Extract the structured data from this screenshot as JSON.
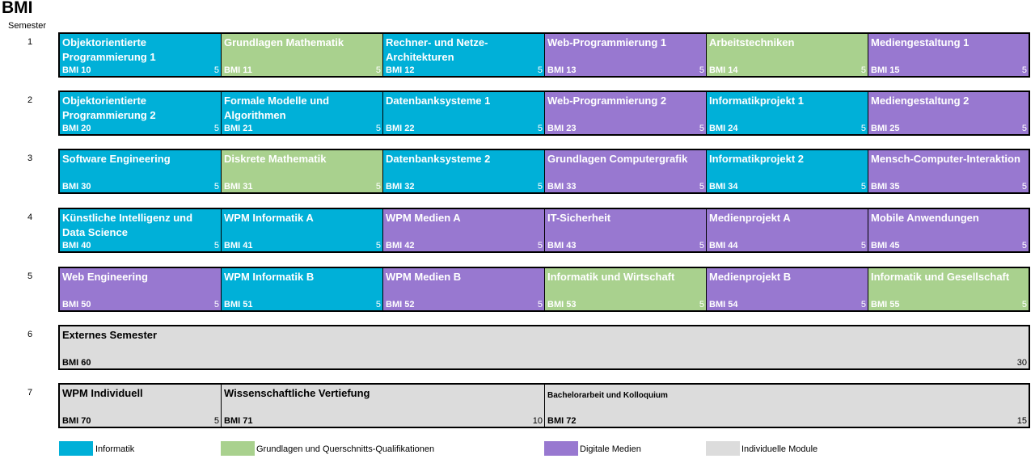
{
  "title": "BMI",
  "semester_header": "Semester",
  "colors": {
    "informatik": "#00b0d8",
    "grundlagen": "#a9d18e",
    "medien": "#9878d0",
    "individuell": "#dcdcdc"
  },
  "semesters": [
    {
      "number": "1",
      "modules": [
        {
          "name": "Objektorientierte Programmierung 1",
          "code": "BMI 10",
          "ects": "5",
          "category": "inf"
        },
        {
          "name": "Grundlagen Mathematik",
          "code": "BMI 11",
          "ects": "5",
          "category": "gq"
        },
        {
          "name": "Rechner- und Netze-Architekturen",
          "code": "BMI 12",
          "ects": "5",
          "category": "inf"
        },
        {
          "name": "Web-Programmierung 1",
          "code": "BMI 13",
          "ects": "5",
          "category": "dm"
        },
        {
          "name": "Arbeitstechniken",
          "code": "BMI 14",
          "ects": "5",
          "category": "gq"
        },
        {
          "name": "Mediengestaltung 1",
          "code": "BMI 15",
          "ects": "5",
          "category": "dm"
        }
      ]
    },
    {
      "number": "2",
      "modules": [
        {
          "name": "Objektorientierte Programmierung 2",
          "code": "BMI 20",
          "ects": "5",
          "category": "inf"
        },
        {
          "name": "Formale Modelle und Algorithmen",
          "code": "BMI 21",
          "ects": "5",
          "category": "inf"
        },
        {
          "name": "Datenbanksysteme 1",
          "code": "BMI 22",
          "ects": "5",
          "category": "inf"
        },
        {
          "name": "Web-Programmierung 2",
          "code": "BMI 23",
          "ects": "5",
          "category": "dm"
        },
        {
          "name": "Informatikprojekt 1",
          "code": "BMI 24",
          "ects": "5",
          "category": "inf"
        },
        {
          "name": "Mediengestaltung 2",
          "code": "BMI 25",
          "ects": "5",
          "category": "dm"
        }
      ]
    },
    {
      "number": "3",
      "modules": [
        {
          "name": "Software Engineering",
          "code": "BMI 30",
          "ects": "5",
          "category": "inf"
        },
        {
          "name": "Diskrete Mathematik",
          "code": "BMI 31",
          "ects": "5",
          "category": "gq"
        },
        {
          "name": "Datenbanksysteme 2",
          "code": "BMI 32",
          "ects": "5",
          "category": "inf"
        },
        {
          "name": "Grundlagen Computergrafik",
          "code": "BMI 33",
          "ects": "5",
          "category": "dm"
        },
        {
          "name": "Informatikprojekt 2",
          "code": "BMI 34",
          "ects": "5",
          "category": "inf"
        },
        {
          "name": "Mensch-Computer-Interaktion",
          "code": "BMI 35",
          "ects": "5",
          "category": "dm"
        }
      ]
    },
    {
      "number": "4",
      "modules": [
        {
          "name": "Künstliche Intelligenz und Data Science",
          "code": "BMI 40",
          "ects": "5",
          "category": "inf"
        },
        {
          "name": "WPM Informatik A",
          "code": "BMI 41",
          "ects": "5",
          "category": "inf"
        },
        {
          "name": "WPM Medien A",
          "code": "BMI 42",
          "ects": "5",
          "category": "dm"
        },
        {
          "name": "IT-Sicherheit",
          "code": "BMI 43",
          "ects": "5",
          "category": "dm"
        },
        {
          "name": "Medienprojekt A",
          "code": "BMI 44",
          "ects": "5",
          "category": "dm"
        },
        {
          "name": "Mobile Anwendungen",
          "code": "BMI 45",
          "ects": "5",
          "category": "dm"
        }
      ]
    },
    {
      "number": "5",
      "modules": [
        {
          "name": "Web Engineering",
          "code": "BMI 50",
          "ects": "5",
          "category": "dm"
        },
        {
          "name": "WPM Informatik B",
          "code": "BMI 51",
          "ects": "5",
          "category": "inf"
        },
        {
          "name": "WPM Medien B",
          "code": "BMI 52",
          "ects": "5",
          "category": "dm"
        },
        {
          "name": "Informatik und Wirtschaft",
          "code": "BMI 53",
          "ects": "5",
          "category": "gq"
        },
        {
          "name": "Medienprojekt B",
          "code": "BMI 54",
          "ects": "5",
          "category": "dm"
        },
        {
          "name": "Informatik und Gesellschaft",
          "code": "BMI 55",
          "ects": "5",
          "category": "gq"
        }
      ]
    },
    {
      "number": "6",
      "modules": [
        {
          "name": "Externes Semester",
          "code": "BMI 60",
          "ects": "30",
          "category": "ind"
        }
      ]
    },
    {
      "number": "7",
      "modules": [
        {
          "name": "WPM Individuell",
          "code": "BMI 70",
          "ects": "5",
          "category": "ind"
        },
        {
          "name": "Wissenschaftliche Vertiefung",
          "code": "BMI 71",
          "ects": "10",
          "category": "ind"
        },
        {
          "name": "Bachelorarbeit und Kolloquium",
          "code": "BMI 72",
          "ects": "15",
          "category": "ind"
        }
      ]
    }
  ],
  "legend": [
    {
      "label": "Informatik",
      "category": "inf"
    },
    {
      "label": "Grundlagen und Querschnitts-Qualifikationen",
      "category": "gq"
    },
    {
      "label": "Digitale Medien",
      "category": "dm"
    },
    {
      "label": "Individuelle Module",
      "category": "ind"
    }
  ]
}
